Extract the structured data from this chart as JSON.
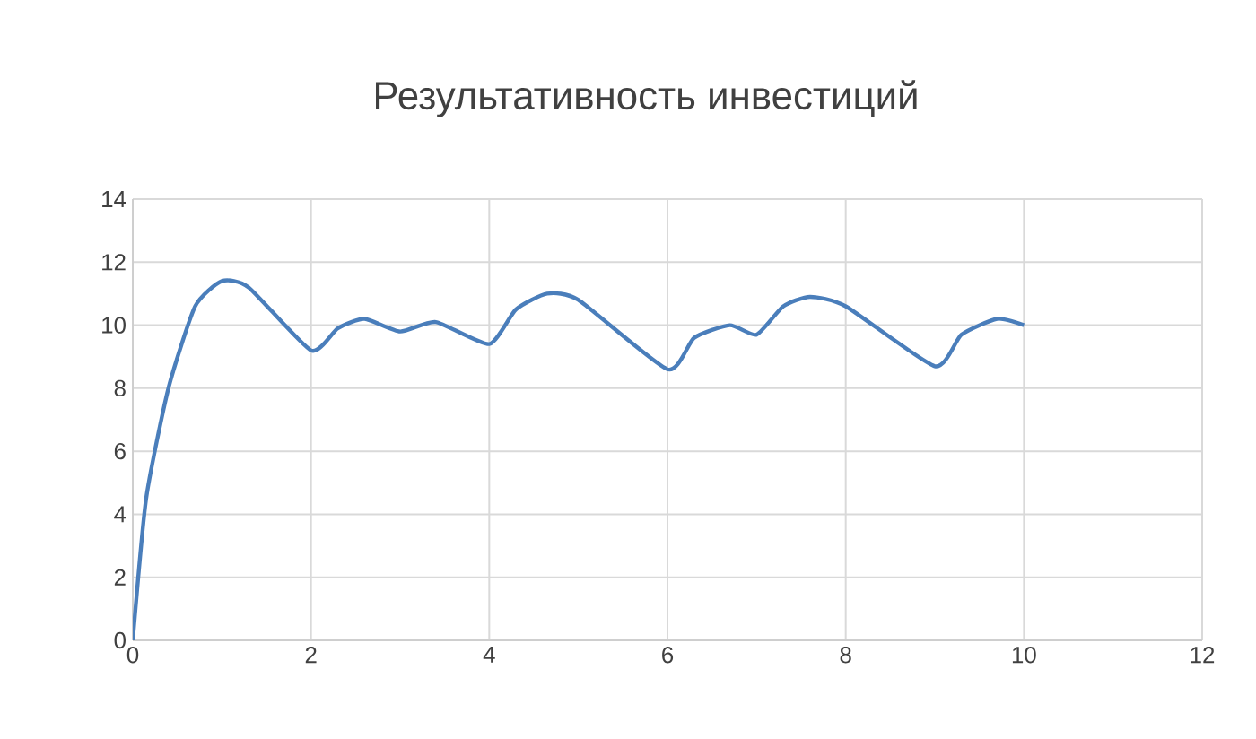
{
  "chart_data": {
    "type": "line",
    "title": "Результативность инвестиций",
    "series": [
      {
        "color": "#4a7ebb",
        "x": [
          0,
          0.15,
          0.4,
          0.7,
          1,
          1.3,
          2,
          2.3,
          2.6,
          3,
          3.4,
          4,
          4.3,
          4.65,
          5,
          6,
          6.3,
          6.7,
          7,
          7.3,
          7.6,
          8,
          9,
          9.3,
          9.7,
          10
        ],
        "values": [
          0,
          4.5,
          8,
          10.6,
          11.4,
          11.2,
          9.2,
          9.9,
          10.2,
          9.8,
          10.1,
          9.4,
          10.5,
          11,
          10.8,
          8.6,
          9.6,
          10,
          9.7,
          10.6,
          10.9,
          10.6,
          8.7,
          9.7,
          10.2,
          10
        ]
      }
    ],
    "xlim": [
      0,
      12
    ],
    "xticks": [
      0,
      2,
      4,
      6,
      8,
      10,
      12
    ],
    "ylim": [
      0,
      14
    ],
    "yticks": [
      0,
      2,
      4,
      6,
      8,
      10,
      12,
      14
    ],
    "grid": true,
    "marker": "none",
    "line_style": "solid"
  }
}
